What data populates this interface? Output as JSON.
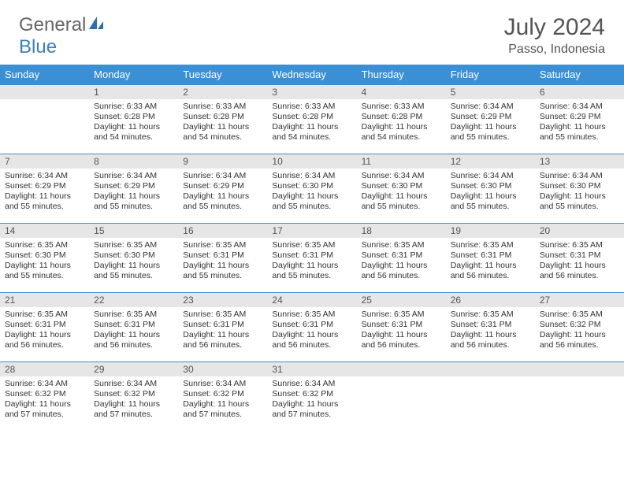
{
  "brand": {
    "part1": "General",
    "part2": "Blue"
  },
  "title": {
    "month": "July 2024",
    "location": "Passo, Indonesia"
  },
  "colors": {
    "header_bg": "#3b8fd4",
    "header_text": "#ffffff",
    "daynum_bg": "#e6e6e6",
    "border": "#3b8fd4",
    "body_text": "#333333",
    "title_text": "#555555",
    "logo_gray": "#666666",
    "logo_blue": "#3b7fc4"
  },
  "weekdays": [
    "Sunday",
    "Monday",
    "Tuesday",
    "Wednesday",
    "Thursday",
    "Friday",
    "Saturday"
  ],
  "weeks": [
    [
      null,
      {
        "n": "1",
        "sr": "6:33 AM",
        "ss": "6:28 PM",
        "dl": "11 hours and 54 minutes."
      },
      {
        "n": "2",
        "sr": "6:33 AM",
        "ss": "6:28 PM",
        "dl": "11 hours and 54 minutes."
      },
      {
        "n": "3",
        "sr": "6:33 AM",
        "ss": "6:28 PM",
        "dl": "11 hours and 54 minutes."
      },
      {
        "n": "4",
        "sr": "6:33 AM",
        "ss": "6:28 PM",
        "dl": "11 hours and 54 minutes."
      },
      {
        "n": "5",
        "sr": "6:34 AM",
        "ss": "6:29 PM",
        "dl": "11 hours and 55 minutes."
      },
      {
        "n": "6",
        "sr": "6:34 AM",
        "ss": "6:29 PM",
        "dl": "11 hours and 55 minutes."
      }
    ],
    [
      {
        "n": "7",
        "sr": "6:34 AM",
        "ss": "6:29 PM",
        "dl": "11 hours and 55 minutes."
      },
      {
        "n": "8",
        "sr": "6:34 AM",
        "ss": "6:29 PM",
        "dl": "11 hours and 55 minutes."
      },
      {
        "n": "9",
        "sr": "6:34 AM",
        "ss": "6:29 PM",
        "dl": "11 hours and 55 minutes."
      },
      {
        "n": "10",
        "sr": "6:34 AM",
        "ss": "6:30 PM",
        "dl": "11 hours and 55 minutes."
      },
      {
        "n": "11",
        "sr": "6:34 AM",
        "ss": "6:30 PM",
        "dl": "11 hours and 55 minutes."
      },
      {
        "n": "12",
        "sr": "6:34 AM",
        "ss": "6:30 PM",
        "dl": "11 hours and 55 minutes."
      },
      {
        "n": "13",
        "sr": "6:34 AM",
        "ss": "6:30 PM",
        "dl": "11 hours and 55 minutes."
      }
    ],
    [
      {
        "n": "14",
        "sr": "6:35 AM",
        "ss": "6:30 PM",
        "dl": "11 hours and 55 minutes."
      },
      {
        "n": "15",
        "sr": "6:35 AM",
        "ss": "6:30 PM",
        "dl": "11 hours and 55 minutes."
      },
      {
        "n": "16",
        "sr": "6:35 AM",
        "ss": "6:31 PM",
        "dl": "11 hours and 55 minutes."
      },
      {
        "n": "17",
        "sr": "6:35 AM",
        "ss": "6:31 PM",
        "dl": "11 hours and 55 minutes."
      },
      {
        "n": "18",
        "sr": "6:35 AM",
        "ss": "6:31 PM",
        "dl": "11 hours and 56 minutes."
      },
      {
        "n": "19",
        "sr": "6:35 AM",
        "ss": "6:31 PM",
        "dl": "11 hours and 56 minutes."
      },
      {
        "n": "20",
        "sr": "6:35 AM",
        "ss": "6:31 PM",
        "dl": "11 hours and 56 minutes."
      }
    ],
    [
      {
        "n": "21",
        "sr": "6:35 AM",
        "ss": "6:31 PM",
        "dl": "11 hours and 56 minutes."
      },
      {
        "n": "22",
        "sr": "6:35 AM",
        "ss": "6:31 PM",
        "dl": "11 hours and 56 minutes."
      },
      {
        "n": "23",
        "sr": "6:35 AM",
        "ss": "6:31 PM",
        "dl": "11 hours and 56 minutes."
      },
      {
        "n": "24",
        "sr": "6:35 AM",
        "ss": "6:31 PM",
        "dl": "11 hours and 56 minutes."
      },
      {
        "n": "25",
        "sr": "6:35 AM",
        "ss": "6:31 PM",
        "dl": "11 hours and 56 minutes."
      },
      {
        "n": "26",
        "sr": "6:35 AM",
        "ss": "6:31 PM",
        "dl": "11 hours and 56 minutes."
      },
      {
        "n": "27",
        "sr": "6:35 AM",
        "ss": "6:32 PM",
        "dl": "11 hours and 56 minutes."
      }
    ],
    [
      {
        "n": "28",
        "sr": "6:34 AM",
        "ss": "6:32 PM",
        "dl": "11 hours and 57 minutes."
      },
      {
        "n": "29",
        "sr": "6:34 AM",
        "ss": "6:32 PM",
        "dl": "11 hours and 57 minutes."
      },
      {
        "n": "30",
        "sr": "6:34 AM",
        "ss": "6:32 PM",
        "dl": "11 hours and 57 minutes."
      },
      {
        "n": "31",
        "sr": "6:34 AM",
        "ss": "6:32 PM",
        "dl": "11 hours and 57 minutes."
      },
      null,
      null,
      null
    ]
  ],
  "labels": {
    "sunrise": "Sunrise: ",
    "sunset": "Sunset: ",
    "daylight": "Daylight: "
  }
}
